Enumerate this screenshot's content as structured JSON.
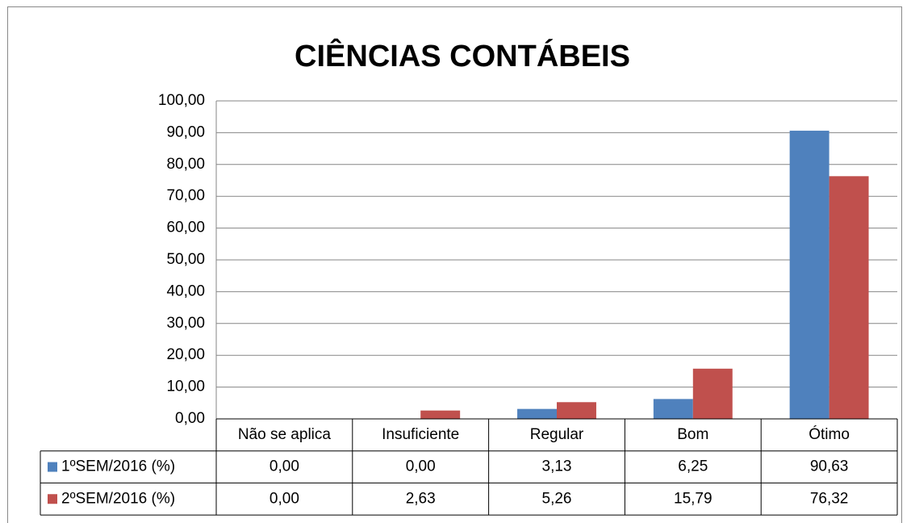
{
  "chart_data": {
    "type": "bar",
    "title": "CIÊNCIAS CONTÁBEIS",
    "categories": [
      "Não se aplica",
      "Insuficiente",
      "Regular",
      "Bom",
      "Ótimo"
    ],
    "series": [
      {
        "name": "1ºSEM/2016 (%)",
        "color": "#4f81bd",
        "values": [
          0,
          0,
          3.13,
          6.25,
          90.63
        ],
        "value_labels": [
          "0,00",
          "0,00",
          "3,13",
          "6,25",
          "90,63"
        ]
      },
      {
        "name": "2ºSEM/2016 (%)",
        "color": "#c0504d",
        "values": [
          0,
          2.63,
          5.26,
          15.79,
          76.32
        ],
        "value_labels": [
          "0,00",
          "2,63",
          "5,26",
          "15,79",
          "76,32"
        ]
      }
    ],
    "ylim": [
      0,
      100
    ],
    "yticks": [
      {
        "value": 0,
        "label": "0,00"
      },
      {
        "value": 10,
        "label": "10,00"
      },
      {
        "value": 20,
        "label": "20,00"
      },
      {
        "value": 30,
        "label": "30,00"
      },
      {
        "value": 40,
        "label": "40,00"
      },
      {
        "value": 50,
        "label": "50,00"
      },
      {
        "value": 60,
        "label": "60,00"
      },
      {
        "value": 70,
        "label": "70,00"
      },
      {
        "value": 80,
        "label": "80,00"
      },
      {
        "value": 90,
        "label": "90,00"
      },
      {
        "value": 100,
        "label": "100,00"
      }
    ],
    "grid": true
  }
}
